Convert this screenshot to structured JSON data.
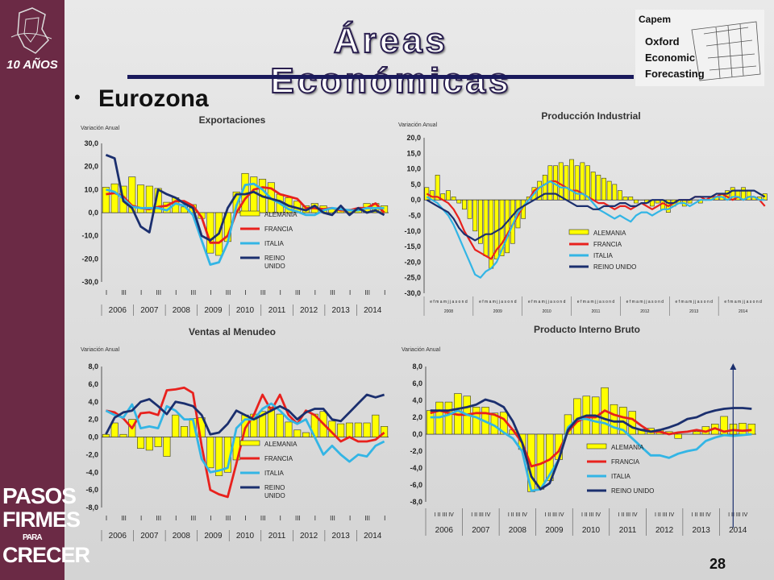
{
  "header": {
    "title": "Áreas Económicas",
    "subtitle": "Eurozona",
    "logo_text": "Capem Oxford Economic Forecasting",
    "slogan": [
      "PASOS",
      "FIRMES",
      "PARA",
      "CRECER"
    ],
    "anniversary": "10 AÑOS"
  },
  "page_number": "28",
  "colors": {
    "sidebar": "#6b2a45",
    "alemania": "#ffff00",
    "francia": "#e8211d",
    "italia": "#33b5e5",
    "reino_unido": "#1b2f6e",
    "title_stroke": "#2b2050"
  },
  "chart_data": [
    {
      "id": "exportaciones",
      "type": "bar",
      "title": "Exportaciones",
      "ylabel": "Variación Anual",
      "ylim": [
        -30,
        30
      ],
      "yticks": [
        "30,0",
        "20,0",
        "10,0",
        "0,0",
        "-10,0",
        "-20,0",
        "-30,0"
      ],
      "quarter_labels": [
        "I",
        "III",
        "I",
        "III",
        "I",
        "III",
        "I",
        "III",
        "I",
        "III",
        "I",
        "III",
        "I",
        "III",
        "I",
        "III",
        "I"
      ],
      "years": [
        "2006",
        "2007",
        "2008",
        "2009",
        "2010",
        "2011",
        "2012",
        "2013",
        "2014"
      ],
      "legend": [
        "ALEMANIA",
        "FRANCIA",
        "ITALIA",
        "REINO UNIDO"
      ],
      "bar_series": {
        "name": "ALEMANIA",
        "values": [
          11,
          12.5,
          11.5,
          15.5,
          12,
          11.5,
          10.5,
          4.5,
          6.5,
          2.5,
          3.5,
          -2.5,
          -17.5,
          -18.5,
          -12.5,
          9,
          17,
          15.5,
          14.5,
          13,
          8,
          6.5,
          5,
          3,
          4,
          3,
          2,
          1,
          1.5,
          2,
          4,
          4,
          3
        ]
      },
      "line_series": [
        {
          "name": "FRANCIA",
          "values": [
            8,
            8.5,
            7,
            3,
            2,
            1.5,
            2.5,
            3,
            5,
            5,
            3,
            -2,
            -13,
            -13,
            -10,
            0,
            6,
            10,
            11,
            10.5,
            8,
            7,
            6,
            2,
            2,
            1.5,
            2,
            1,
            1,
            2,
            2,
            4,
            0
          ]
        },
        {
          "name": "ITALIA",
          "values": [
            10,
            9,
            6,
            2.5,
            2,
            2,
            2,
            1,
            4,
            3,
            -1,
            -12,
            -22.5,
            -21.5,
            -13,
            3,
            12,
            12.5,
            10,
            6,
            4,
            1.5,
            0.5,
            -1,
            -1,
            1,
            2,
            1.5,
            1,
            1,
            2,
            2,
            2
          ]
        },
        {
          "name": "REINO UNIDO",
          "values": [
            25,
            23.5,
            5,
            2,
            -6,
            -8.5,
            10,
            8,
            6.5,
            4,
            2,
            -10,
            -12,
            -9,
            2,
            8,
            8,
            9,
            7,
            6,
            5,
            3,
            2,
            1,
            3,
            0,
            -1,
            3,
            -1,
            2,
            0,
            1,
            -1
          ]
        }
      ]
    },
    {
      "id": "produccion_industrial",
      "type": "bar",
      "title": "Producción Industrial",
      "ylabel": "Variación Anual",
      "ylim": [
        -30,
        20
      ],
      "yticks": [
        "20,0",
        "15,0",
        "10,0",
        "5,0",
        "0,0",
        "-5,0",
        "-10,0",
        "-15,0",
        "-20,0",
        "-25,0",
        "-30,0"
      ],
      "month_axis": "e f m a m j j a s o n d",
      "years": [
        "2008",
        "2009",
        "2010",
        "2011",
        "2012",
        "2013",
        "2014"
      ],
      "legend": [
        "ALEMANIA",
        "FRANCIA",
        "ITALIA",
        "REINO UNIDO"
      ],
      "bar_series": {
        "name": "ALEMANIA",
        "values": [
          4,
          3,
          8,
          2,
          3,
          1,
          -1,
          -3,
          -6,
          -10,
          -14,
          -18,
          -22,
          -19,
          -18,
          -17,
          -14,
          -9,
          -6,
          1,
          4,
          6,
          8,
          11,
          11,
          12,
          11,
          13,
          11,
          12,
          11,
          9,
          8,
          7,
          6,
          5,
          3,
          1,
          1,
          -1,
          0,
          -1,
          -2,
          -1,
          -3,
          -4,
          -2,
          -1,
          -2,
          -1,
          0,
          -1,
          0,
          1,
          1,
          2,
          3,
          4,
          3,
          4,
          3,
          1,
          1,
          2
        ]
      },
      "line_series": [
        {
          "name": "FRANCIA",
          "values": [
            2,
            1,
            1,
            0,
            -1,
            -3,
            -6,
            -10,
            -13,
            -16,
            -17,
            -18,
            -19,
            -16,
            -14,
            -11,
            -8,
            -5,
            -2,
            0,
            3,
            4,
            5,
            6,
            6,
            5,
            4,
            3,
            3,
            2,
            1,
            0,
            -1,
            -1,
            -2,
            -3,
            -2,
            -2,
            -3,
            -2,
            -1,
            -2,
            -3,
            -2,
            -1,
            -2,
            -1,
            0,
            0,
            0,
            1,
            1,
            0,
            1,
            1,
            2,
            1,
            0,
            1,
            0,
            1,
            1,
            0,
            -2
          ]
        },
        {
          "name": "ITALIA",
          "values": [
            1,
            0,
            -1,
            -3,
            -5,
            -8,
            -12,
            -16,
            -20,
            -24,
            -25,
            -23,
            -22,
            -20,
            -16,
            -12,
            -8,
            -4,
            -2,
            0,
            2,
            4,
            5,
            6,
            5,
            4,
            4,
            3,
            2,
            2,
            1,
            -1,
            -3,
            -4,
            -5,
            -6,
            -5,
            -6,
            -7,
            -5,
            -4,
            -4,
            -5,
            -4,
            -3,
            -3,
            -2,
            -1,
            -1,
            -2,
            -1,
            0,
            0,
            0,
            1,
            1,
            0,
            1,
            1,
            0,
            1,
            1,
            0,
            0
          ]
        },
        {
          "name": "REINO UNIDO",
          "values": [
            0,
            -1,
            -2,
            -3,
            -4,
            -6,
            -9,
            -11,
            -12,
            -13,
            -12,
            -11,
            -11,
            -10,
            -9,
            -7,
            -5,
            -3,
            -2,
            -1,
            0,
            1,
            2,
            2,
            2,
            1,
            0,
            -1,
            -2,
            -2,
            -2,
            -3,
            -3,
            -2,
            -2,
            -2,
            -1,
            -1,
            -2,
            -2,
            -1,
            -1,
            0,
            0,
            0,
            -1,
            -1,
            0,
            0,
            0,
            1,
            1,
            1,
            1,
            2,
            2,
            2,
            3,
            3,
            3,
            3,
            3,
            2,
            1
          ]
        }
      ]
    },
    {
      "id": "ventas_menudeo",
      "type": "bar",
      "title": "Ventas al Menudeo",
      "ylabel": "Variación Anual",
      "ylim": [
        -8,
        8
      ],
      "yticks": [
        "8,0",
        "6,0",
        "4,0",
        "2,0",
        "0,0",
        "-2,0",
        "-4,0",
        "-6,0",
        "-8,0"
      ],
      "quarter_labels": [
        "I",
        "III",
        "I",
        "III",
        "I",
        "III",
        "I",
        "III",
        "I",
        "III",
        "I",
        "III",
        "I",
        "III",
        "I",
        "III",
        "I"
      ],
      "years": [
        "2006",
        "2007",
        "2008",
        "2009",
        "2010",
        "2011",
        "2012",
        "2013",
        "2014"
      ],
      "legend": [
        "ALEMANIA",
        "FRANCIA",
        "ITALIA",
        "REINO UNIDO"
      ],
      "bar_series": {
        "name": "ALEMANIA",
        "values": [
          0.3,
          1.6,
          0.3,
          2,
          -1.3,
          -1.5,
          -1.1,
          -2.2,
          2.5,
          1.2,
          2.1,
          2.2,
          -3.5,
          -4.4,
          -4,
          -2.6,
          2.5,
          2.6,
          2.9,
          3.4,
          2.6,
          1.7,
          0.8,
          0.5,
          2.6,
          2.9,
          1.8,
          1.5,
          1.6,
          1.6,
          1.6,
          2.5,
          1.2
        ]
      },
      "line_series": [
        {
          "name": "FRANCIA",
          "values": [
            3,
            2.8,
            2.1,
            1,
            2.7,
            2.8,
            2.5,
            5.3,
            5.4,
            5.6,
            5,
            -1,
            -6,
            -6.5,
            -6.8,
            -3,
            1,
            2.5,
            4.8,
            3,
            4.8,
            2.5,
            1.5,
            3,
            2.5,
            1.5,
            0.5,
            -0.5,
            0,
            -0.5,
            -0.5,
            -0.3,
            0.5
          ]
        },
        {
          "name": "ITALIA",
          "values": [
            3,
            2.5,
            2.2,
            3.7,
            1,
            1.2,
            1,
            3.5,
            3,
            2,
            2,
            -2.5,
            -4,
            -3.8,
            -3.5,
            1,
            2,
            2,
            3.2,
            3.8,
            3,
            2,
            1.5,
            2,
            0,
            -2,
            -1,
            -2,
            -2.8,
            -2,
            -2.2,
            -1,
            -0.5
          ]
        },
        {
          "name": "REINO UNIDO",
          "values": [
            0.3,
            2.2,
            2.8,
            3,
            4,
            4.3,
            3.5,
            2.6,
            4,
            3.8,
            3.5,
            2.5,
            0.3,
            0.5,
            1.5,
            3,
            2.5,
            2,
            2.5,
            3,
            3.5,
            3,
            2,
            2.8,
            3.2,
            3.2,
            2,
            1.8,
            2.8,
            3.8,
            4.8,
            4.5,
            4.8
          ]
        }
      ]
    },
    {
      "id": "pib",
      "type": "bar",
      "title": "Producto Interno Bruto",
      "ylabel": "Variación Anual",
      "ylim": [
        -8,
        8
      ],
      "yticks": [
        "8,0",
        "6,0",
        "4,0",
        "2,0",
        "0,0",
        "-2,0",
        "-4,0",
        "-6,0",
        "-8,0"
      ],
      "quarter_labels": [
        "I",
        "II",
        "III",
        "IV"
      ],
      "years": [
        "2006",
        "2007",
        "2008",
        "2009",
        "2010",
        "2011",
        "2012",
        "2013",
        "2014"
      ],
      "legend": [
        "ALEMANIA",
        "FRANCIA",
        "ITALIA",
        "REINO UNIDO"
      ],
      "bar_series": {
        "name": "ALEMANIA",
        "values": [
          2.8,
          3.8,
          3.8,
          4.8,
          4.5,
          3.2,
          3.2,
          2.5,
          2.6,
          0.5,
          -1.8,
          -6.8,
          -6.5,
          -5.5,
          -3,
          2.3,
          4.2,
          4.5,
          4.4,
          5.5,
          3.5,
          3.2,
          2.7,
          0.6,
          0.7,
          0.5,
          0.3,
          -0.5,
          0,
          0.3,
          0.9,
          1.2,
          2.1,
          1.2,
          1.3,
          1.2
        ]
      },
      "line_series": [
        {
          "name": "FRANCIA",
          "values": [
            2.5,
            2.8,
            2.5,
            2.3,
            2.3,
            2.5,
            2.5,
            2.3,
            1.8,
            0.5,
            -1,
            -3.8,
            -3.5,
            -3,
            -2,
            0.3,
            1.5,
            2,
            2,
            2.8,
            2.3,
            2,
            1.8,
            1,
            0.3,
            0.3,
            0,
            0.2,
            0.3,
            0.5,
            0.3,
            0.7,
            0.3,
            0.5,
            0.4,
            0.5
          ]
        },
        {
          "name": "ITALIA",
          "values": [
            2,
            2,
            2.3,
            2.8,
            2.3,
            2,
            1.5,
            1,
            0.2,
            -0.5,
            -2,
            -6.7,
            -6.5,
            -4.8,
            -3,
            0.8,
            1.8,
            1.8,
            1.5,
            1.3,
            0.8,
            0.5,
            -0.5,
            -1.5,
            -2.5,
            -2.5,
            -2.8,
            -2.3,
            -2,
            -1.8,
            -0.8,
            -0.4,
            -0.1,
            -0.2,
            -0.1,
            0
          ]
        },
        {
          "name": "REINO UNIDO",
          "values": [
            2.8,
            2.8,
            2.8,
            3,
            3.2,
            3.5,
            4.1,
            3.8,
            3.2,
            1.5,
            -1,
            -5,
            -6.5,
            -5.8,
            -3,
            0.5,
            1.8,
            2.2,
            2.2,
            1.8,
            1.5,
            1.5,
            0.8,
            0.5,
            0.3,
            0.5,
            0.8,
            1.2,
            1.8,
            2,
            2.5,
            2.8,
            3,
            3.1,
            3.1,
            3
          ]
        }
      ]
    }
  ]
}
